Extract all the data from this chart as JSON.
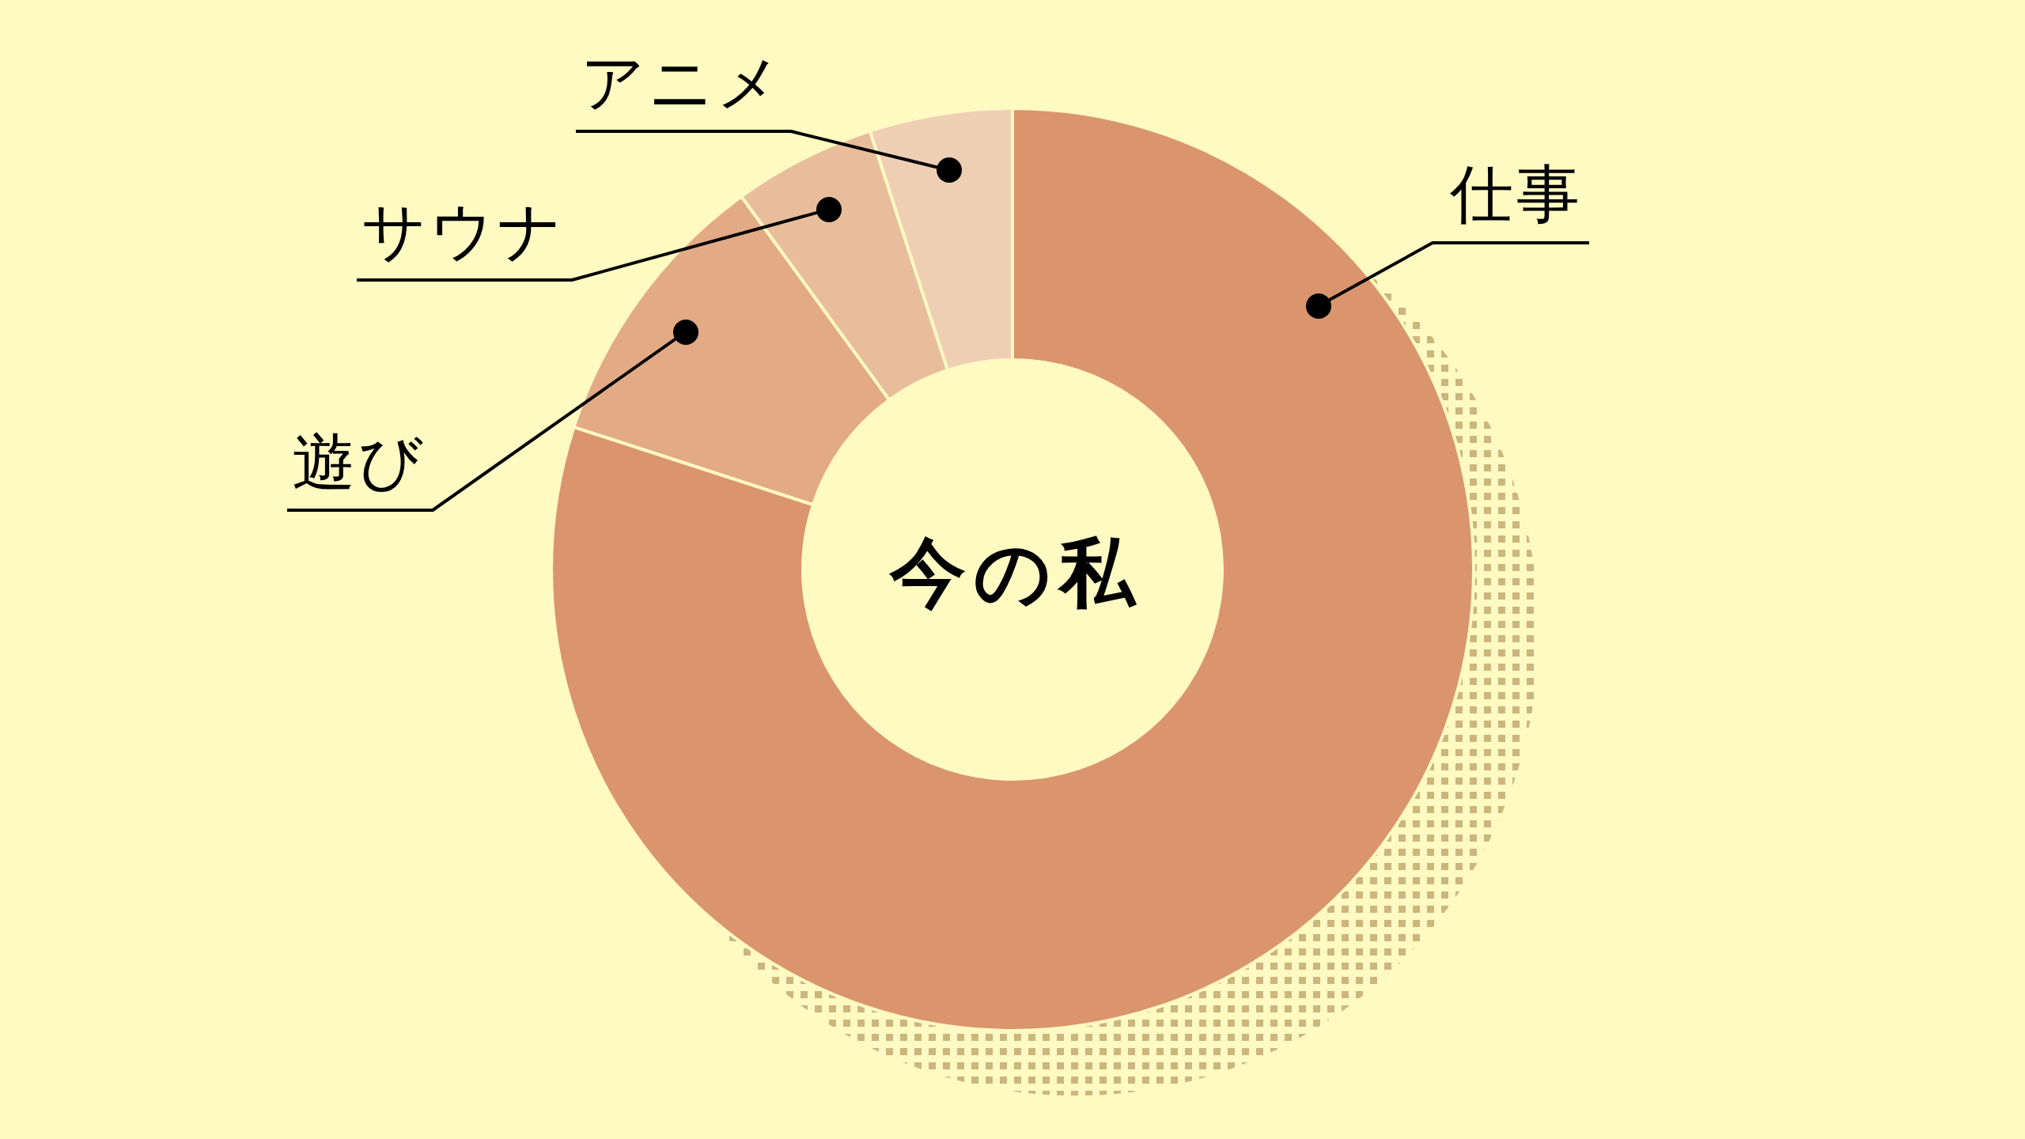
{
  "chart_data": {
    "type": "donut",
    "title": "今の私",
    "categories": [
      "仕事",
      "遊び",
      "サウナ",
      "アニメ"
    ],
    "values": [
      80,
      10,
      5,
      5
    ],
    "colors": [
      "#da956c",
      "#e2aa85",
      "#e8bd9c",
      "#eecfb4"
    ]
  }
}
